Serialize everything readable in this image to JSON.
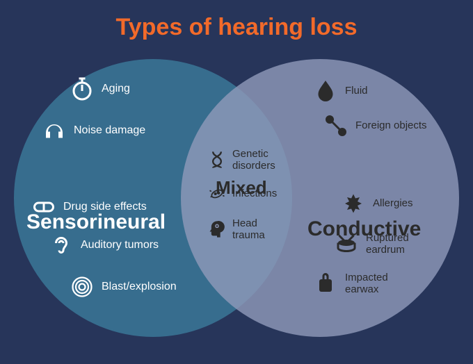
{
  "title": "Types of hearing loss",
  "title_color": "#f26a2a",
  "background_color": "#27355a",
  "left_circle_color": "#3a7a9a",
  "right_circle_color": "#8e99b8",
  "circle_opacity": 0.82,
  "categories": {
    "left": {
      "label": "Sensorineural",
      "label_color": "#ffffff"
    },
    "middle": {
      "label": "Mixed",
      "label_color": "#2b2b2b"
    },
    "right": {
      "label": "Conductive",
      "label_color": "#2b2b2b"
    }
  },
  "icon_color_left": "#ffffff",
  "icon_color_mid": "#2b2b2b",
  "icon_color_right": "#2b2b2b",
  "text_color_left": "#ffffff",
  "text_color_mid": "#2b2b2b",
  "text_color_right": "#2b2b2b",
  "left_items": [
    {
      "icon": "stopwatch",
      "label": "Aging"
    },
    {
      "icon": "headphones",
      "label": "Noise damage"
    },
    {
      "icon": "pill",
      "label": "Drug side effects"
    },
    {
      "icon": "ear",
      "label": "Auditory tumors"
    },
    {
      "icon": "blast",
      "label": "Blast/explosion"
    }
  ],
  "middle_items": [
    {
      "icon": "dna",
      "label": "Genetic\ndisorders"
    },
    {
      "icon": "bacteria",
      "label": "Infections"
    },
    {
      "icon": "head",
      "label": "Head\ntrauma"
    }
  ],
  "right_items": [
    {
      "icon": "drop",
      "label": "Fluid"
    },
    {
      "icon": "foreign",
      "label": "Foreign objects"
    },
    {
      "icon": "leaf",
      "label": "Allergies"
    },
    {
      "icon": "drum",
      "label": "Ruptured\neardrum"
    },
    {
      "icon": "earwax",
      "label": "Impacted\nearwax"
    }
  ]
}
